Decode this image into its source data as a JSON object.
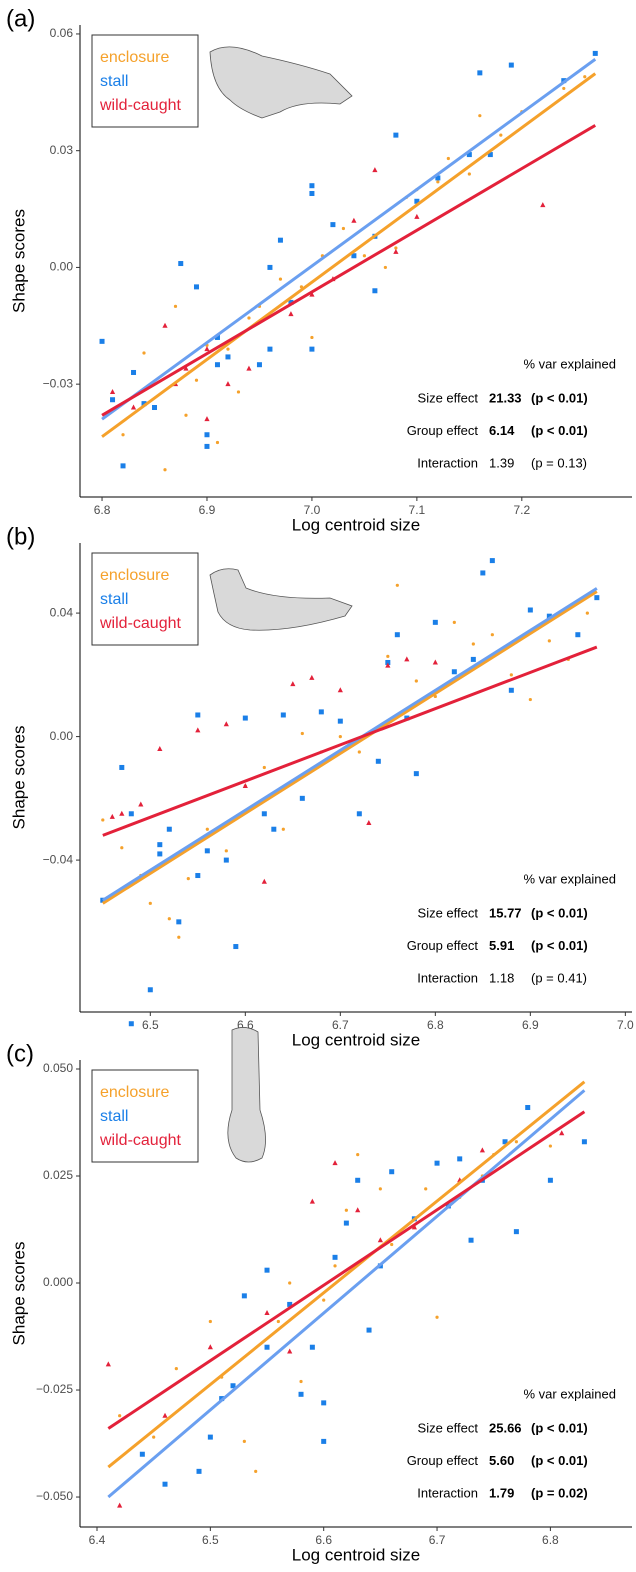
{
  "chart_data": [
    {
      "type": "scatter",
      "panel": "(a)",
      "xlabel": "Log centroid size",
      "ylabel": "Shape scores",
      "xlim": [
        6.779,
        7.305
      ],
      "ylim": [
        -0.059,
        0.0623
      ],
      "xticks": [
        6.8,
        6.9,
        {
          "value": 7.0,
          "label": "7.0"
        },
        7.1,
        7.2
      ],
      "yticks": [
        {
          "value": -0.03,
          "label": "−0.03"
        },
        {
          "value": 0,
          "label": "0.00"
        },
        0.03,
        0.06
      ],
      "series": [
        {
          "name": "enclosure",
          "color": "#f5a12b",
          "marker": "circle",
          "x": [
            6.82,
            6.84,
            6.86,
            6.87,
            6.88,
            6.89,
            6.9,
            6.91,
            6.92,
            6.93,
            6.94,
            6.95,
            6.97,
            6.99,
            7.0,
            7.01,
            7.02,
            7.03,
            7.05,
            7.07,
            7.08,
            7.09,
            7.1,
            7.12,
            7.13,
            7.15,
            7.16,
            7.18,
            7.2,
            7.24,
            7.26
          ],
          "values": [
            -0.043,
            -0.022,
            -0.052,
            -0.01,
            -0.038,
            -0.029,
            -0.02,
            -0.045,
            -0.021,
            -0.032,
            -0.013,
            -0.01,
            -0.003,
            -0.005,
            -0.018,
            0.003,
            0.011,
            0.01,
            0.003,
            0.0,
            0.005,
            0.018,
            0.02,
            0.022,
            0.028,
            0.024,
            0.039,
            0.034,
            0.04,
            0.046,
            0.049
          ]
        },
        {
          "name": "stall",
          "color": "#1a7fe8",
          "marker": "square",
          "x": [
            6.8,
            6.81,
            6.82,
            6.83,
            6.84,
            6.85,
            6.875,
            6.89,
            6.9,
            6.9,
            6.91,
            6.92,
            6.95,
            6.96,
            6.97,
            6.98,
            7.0,
            7.0,
            7.02,
            7.04,
            7.06,
            7.06,
            7.08,
            7.1,
            7.12,
            7.15,
            7.16,
            7.17,
            7.19,
            7.24,
            7.27,
            6.96,
            6.91,
            7.0
          ],
          "values": [
            -0.019,
            -0.034,
            -0.051,
            -0.027,
            -0.035,
            -0.036,
            0.001,
            -0.005,
            -0.043,
            -0.046,
            -0.018,
            -0.023,
            -0.025,
            -0.021,
            0.007,
            -0.009,
            0.021,
            -0.021,
            0.011,
            0.003,
            -0.006,
            0.008,
            0.034,
            0.017,
            0.023,
            0.029,
            0.05,
            0.029,
            0.052,
            0.048,
            0.055,
            0.0,
            -0.025,
            0.019
          ]
        },
        {
          "name": "wild-caught",
          "color": "#e3213a",
          "marker": "triangle",
          "x": [
            6.81,
            6.83,
            6.86,
            6.88,
            6.9,
            6.92,
            6.94,
            6.98,
            7.0,
            7.02,
            7.04,
            7.06,
            7.08,
            7.1,
            7.22,
            6.9,
            6.87
          ],
          "values": [
            -0.032,
            -0.036,
            -0.015,
            -0.026,
            -0.021,
            -0.03,
            -0.026,
            -0.012,
            -0.007,
            -0.003,
            0.012,
            0.025,
            0.004,
            0.013,
            0.016,
            -0.039,
            -0.03
          ]
        }
      ],
      "fits": [
        {
          "color": "#f5a12b",
          "x": [
            6.8,
            7.27
          ],
          "values": [
            -0.0435,
            0.0498
          ]
        },
        {
          "color": "#6a9ff0",
          "x": [
            6.8,
            7.27
          ],
          "values": [
            -0.039,
            0.0535
          ]
        },
        {
          "color": "#e3213a",
          "x": [
            6.8,
            7.27
          ],
          "values": [
            -0.038,
            0.0365
          ]
        }
      ],
      "stats": {
        "header": "% var explained",
        "rows": [
          {
            "label": "Size effect",
            "value": "21.33",
            "p": "(p < 0.01)",
            "bold": true
          },
          {
            "label": "Group effect",
            "value": "6.14",
            "p": "(p < 0.01)",
            "bold": true
          },
          {
            "label": "Interaction",
            "value": "1.39",
            "p": "(p = 0.13)",
            "bold": false
          }
        ]
      }
    },
    {
      "type": "scatter",
      "panel": "(b)",
      "xlabel": "Log centroid size",
      "ylabel": "Shape scores",
      "xlim": [
        6.426,
        7.007
      ],
      "ylim": [
        -0.0892,
        0.0627
      ],
      "xticks": [
        6.5,
        6.6,
        6.7,
        6.8,
        6.9,
        {
          "value": 7.0,
          "label": "7.0"
        }
      ],
      "yticks": [
        {
          "value": -0.04,
          "label": "−0.04"
        },
        {
          "value": 0,
          "label": "0.00"
        },
        0.04
      ],
      "series": [
        {
          "name": "enclosure",
          "color": "#f5a12b",
          "marker": "circle",
          "x": [
            6.45,
            6.47,
            6.49,
            6.5,
            6.52,
            6.53,
            6.54,
            6.56,
            6.58,
            6.6,
            6.62,
            6.64,
            6.66,
            6.68,
            6.7,
            6.72,
            6.74,
            6.75,
            6.76,
            6.78,
            6.8,
            6.82,
            6.84,
            6.86,
            6.88,
            6.9,
            6.92,
            6.94,
            6.96
          ],
          "values": [
            -0.027,
            -0.036,
            -0.045,
            -0.054,
            -0.059,
            -0.065,
            -0.046,
            -0.03,
            -0.037,
            -0.016,
            -0.01,
            -0.03,
            0.001,
            -0.005,
            0.0,
            -0.005,
            -0.008,
            0.026,
            0.049,
            0.018,
            0.013,
            0.037,
            0.03,
            0.033,
            0.02,
            0.012,
            0.031,
            0.025,
            0.04
          ]
        },
        {
          "name": "stall",
          "color": "#1a7fe8",
          "marker": "square",
          "x": [
            6.45,
            6.47,
            6.48,
            6.48,
            6.5,
            6.51,
            6.52,
            6.53,
            6.55,
            6.55,
            6.56,
            6.58,
            6.59,
            6.6,
            6.62,
            6.64,
            6.66,
            6.68,
            6.7,
            6.72,
            6.74,
            6.75,
            6.76,
            6.77,
            6.78,
            6.8,
            6.82,
            6.84,
            6.85,
            6.86,
            6.88,
            6.9,
            6.92,
            6.95,
            6.97,
            6.51,
            6.63
          ],
          "values": [
            -0.053,
            -0.01,
            -0.093,
            -0.025,
            -0.082,
            -0.038,
            -0.03,
            -0.06,
            -0.045,
            0.007,
            -0.037,
            -0.04,
            -0.068,
            0.006,
            -0.025,
            0.007,
            -0.02,
            0.008,
            0.005,
            -0.025,
            -0.008,
            0.024,
            0.033,
            0.006,
            -0.012,
            0.037,
            0.021,
            0.025,
            0.053,
            0.057,
            0.015,
            0.041,
            0.039,
            0.033,
            0.045,
            -0.035,
            -0.03
          ]
        },
        {
          "name": "wild-caught",
          "color": "#e3213a",
          "marker": "triangle",
          "x": [
            6.47,
            6.49,
            6.51,
            6.55,
            6.58,
            6.6,
            6.62,
            6.65,
            6.67,
            6.7,
            6.73,
            6.75,
            6.77,
            6.8,
            6.46
          ],
          "values": [
            -0.025,
            -0.022,
            -0.004,
            0.002,
            0.004,
            -0.016,
            -0.047,
            0.017,
            0.019,
            0.015,
            -0.028,
            0.023,
            0.025,
            0.024,
            -0.026
          ]
        }
      ],
      "fits": [
        {
          "color": "#f5a12b",
          "x": [
            6.45,
            6.97
          ],
          "values": [
            -0.054,
            0.047
          ]
        },
        {
          "color": "#6a9ff0",
          "x": [
            6.45,
            6.97
          ],
          "values": [
            -0.053,
            0.048
          ]
        },
        {
          "color": "#e3213a",
          "x": [
            6.45,
            6.97
          ],
          "values": [
            -0.032,
            0.029
          ]
        }
      ],
      "stats": {
        "header": "% var explained",
        "rows": [
          {
            "label": "Size effect",
            "value": "15.77",
            "p": "(p < 0.01)",
            "bold": true
          },
          {
            "label": "Group effect",
            "value": "5.91",
            "p": "(p < 0.01)",
            "bold": true
          },
          {
            "label": "Interaction",
            "value": "1.18",
            "p": "(p = 0.41)",
            "bold": false
          }
        ]
      }
    },
    {
      "type": "scatter",
      "panel": "(c)",
      "xlabel": "Log centroid size",
      "ylabel": "Shape scores",
      "xlim": [
        6.385,
        6.872
      ],
      "ylim": [
        -0.057,
        0.0521
      ],
      "xticks": [
        6.4,
        6.5,
        6.6,
        6.7,
        6.8
      ],
      "yticks": [
        {
          "value": -0.05,
          "label": "−0.050"
        },
        {
          "value": -0.025,
          "label": "−0.025"
        },
        {
          "value": 0,
          "label": "0.000"
        },
        {
          "value": 0.025,
          "label": "0.025"
        },
        {
          "value": 0.05,
          "label": "0.050"
        }
      ],
      "series": [
        {
          "name": "enclosure",
          "color": "#f5a12b",
          "marker": "circle",
          "x": [
            6.42,
            6.45,
            6.47,
            6.5,
            6.51,
            6.53,
            6.54,
            6.56,
            6.57,
            6.58,
            6.6,
            6.61,
            6.62,
            6.63,
            6.65,
            6.66,
            6.68,
            6.69,
            6.7,
            6.72,
            6.74,
            6.75,
            6.77,
            6.8
          ],
          "values": [
            -0.031,
            -0.036,
            -0.02,
            -0.009,
            -0.022,
            -0.037,
            -0.044,
            -0.009,
            0.0,
            -0.023,
            -0.004,
            0.004,
            0.017,
            0.03,
            0.022,
            0.009,
            0.013,
            0.022,
            -0.008,
            0.02,
            0.025,
            0.03,
            0.033,
            0.032
          ]
        },
        {
          "name": "stall",
          "color": "#1a7fe8",
          "marker": "square",
          "x": [
            6.44,
            6.46,
            6.49,
            6.5,
            6.51,
            6.52,
            6.53,
            6.55,
            6.57,
            6.58,
            6.59,
            6.6,
            6.61,
            6.62,
            6.63,
            6.64,
            6.65,
            6.66,
            6.68,
            6.7,
            6.71,
            6.72,
            6.73,
            6.74,
            6.76,
            6.77,
            6.78,
            6.8,
            6.83,
            6.6,
            6.55
          ],
          "values": [
            -0.04,
            -0.047,
            -0.044,
            -0.036,
            -0.027,
            -0.024,
            -0.003,
            -0.015,
            -0.005,
            -0.026,
            -0.015,
            -0.028,
            0.006,
            0.014,
            0.024,
            -0.011,
            0.004,
            0.026,
            0.015,
            0.028,
            0.018,
            0.029,
            0.01,
            0.024,
            0.033,
            0.012,
            0.041,
            0.024,
            0.033,
            -0.037,
            0.003
          ]
        },
        {
          "name": "wild-caught",
          "color": "#e3213a",
          "marker": "triangle",
          "x": [
            6.41,
            6.42,
            6.46,
            6.5,
            6.55,
            6.59,
            6.61,
            6.63,
            6.65,
            6.68,
            6.72,
            6.74,
            6.81,
            6.57
          ],
          "values": [
            -0.019,
            -0.052,
            -0.031,
            -0.015,
            -0.007,
            0.019,
            0.028,
            0.017,
            0.01,
            0.013,
            0.024,
            0.031,
            0.035,
            -0.016
          ]
        }
      ],
      "fits": [
        {
          "color": "#f5a12b",
          "x": [
            6.41,
            6.83
          ],
          "values": [
            -0.043,
            0.047
          ]
        },
        {
          "color": "#6a9ff0",
          "x": [
            6.41,
            6.83
          ],
          "values": [
            -0.05,
            0.045
          ]
        },
        {
          "color": "#e3213a",
          "x": [
            6.41,
            6.83
          ],
          "values": [
            -0.034,
            0.04
          ]
        }
      ],
      "stats": {
        "header": "% var explained",
        "rows": [
          {
            "label": "Size effect",
            "value": "25.66",
            "p": "(p < 0.01)",
            "bold": true
          },
          {
            "label": "Group effect",
            "value": "5.60",
            "p": "(p < 0.01)",
            "bold": true
          },
          {
            "label": "Interaction",
            "value": "1.79",
            "p": "(p = 0.02)",
            "bold": true
          }
        ]
      }
    }
  ]
}
